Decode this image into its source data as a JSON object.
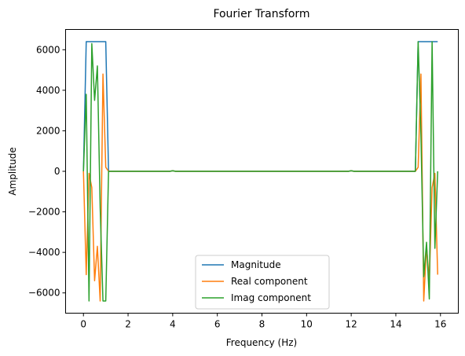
{
  "chart_data": {
    "type": "line",
    "title": "Fourier Transform",
    "xlabel": "Frequency (Hz)",
    "ylabel": "Amplitude",
    "xlim": [
      -0.8,
      16.8
    ],
    "ylim": [
      -7000,
      7000
    ],
    "xticks": [
      0,
      2,
      4,
      6,
      8,
      10,
      12,
      14,
      16
    ],
    "yticks": [
      -6000,
      -4000,
      -2000,
      0,
      2000,
      4000,
      6000
    ],
    "ytick_labels": [
      "−6000",
      "−4000",
      "−2000",
      "0",
      "2000",
      "4000",
      "6000"
    ],
    "grid": false,
    "legend_position": "lower-center",
    "series": [
      {
        "name": "Magnitude",
        "color": "#1f77b4",
        "x": [
          0.0,
          0.125,
          0.25,
          0.375,
          0.5,
          0.625,
          0.75,
          0.875,
          1.0,
          1.125,
          1.25,
          2.0,
          3.875,
          4.0,
          4.125,
          6.0,
          8.0,
          10.0,
          11.875,
          12.0,
          12.125,
          14.0,
          14.75,
          14.875,
          15.0,
          15.125,
          15.25,
          15.375,
          15.5,
          15.625,
          15.75,
          15.875
        ],
        "y": [
          0,
          6400,
          6400,
          6400,
          6400,
          6400,
          6400,
          6400,
          6400,
          0,
          0,
          0,
          0,
          30,
          0,
          0,
          0,
          0,
          0,
          30,
          0,
          0,
          0,
          0,
          6400,
          6400,
          6400,
          6400,
          6400,
          6400,
          6400,
          6400
        ]
      },
      {
        "name": "Real component",
        "color": "#ff7f0e",
        "x": [
          0.0,
          0.125,
          0.25,
          0.375,
          0.5,
          0.625,
          0.75,
          0.875,
          1.0,
          1.125,
          1.25,
          2.0,
          3.875,
          4.0,
          4.125,
          6.0,
          8.0,
          10.0,
          11.875,
          12.0,
          12.125,
          14.0,
          14.75,
          14.875,
          15.0,
          15.125,
          15.25,
          15.375,
          15.5,
          15.625,
          15.75,
          15.875
        ],
        "y": [
          0,
          -5100,
          -100,
          -800,
          -5400,
          -3700,
          -6400,
          4800,
          200,
          0,
          0,
          0,
          0,
          30,
          0,
          0,
          0,
          0,
          0,
          30,
          0,
          0,
          0,
          0,
          200,
          4800,
          -6400,
          -3700,
          -5400,
          -800,
          -100,
          -5100
        ]
      },
      {
        "name": "Imag component",
        "color": "#2ca02c",
        "x": [
          0.0,
          0.125,
          0.25,
          0.375,
          0.5,
          0.625,
          0.75,
          0.875,
          1.0,
          1.125,
          1.25,
          2.0,
          3.875,
          4.0,
          4.125,
          6.0,
          8.0,
          10.0,
          11.875,
          12.0,
          12.125,
          14.0,
          14.75,
          14.875,
          15.0,
          15.125,
          15.25,
          15.375,
          15.5,
          15.625,
          15.75,
          15.875
        ],
        "y": [
          0,
          3800,
          -6400,
          6300,
          3500,
          5200,
          -1800,
          -6400,
          -6400,
          0,
          0,
          0,
          0,
          30,
          0,
          0,
          0,
          0,
          0,
          30,
          0,
          0,
          0,
          0,
          6400,
          1800,
          -5200,
          -3500,
          -6300,
          6400,
          -3800,
          0
        ]
      }
    ]
  }
}
